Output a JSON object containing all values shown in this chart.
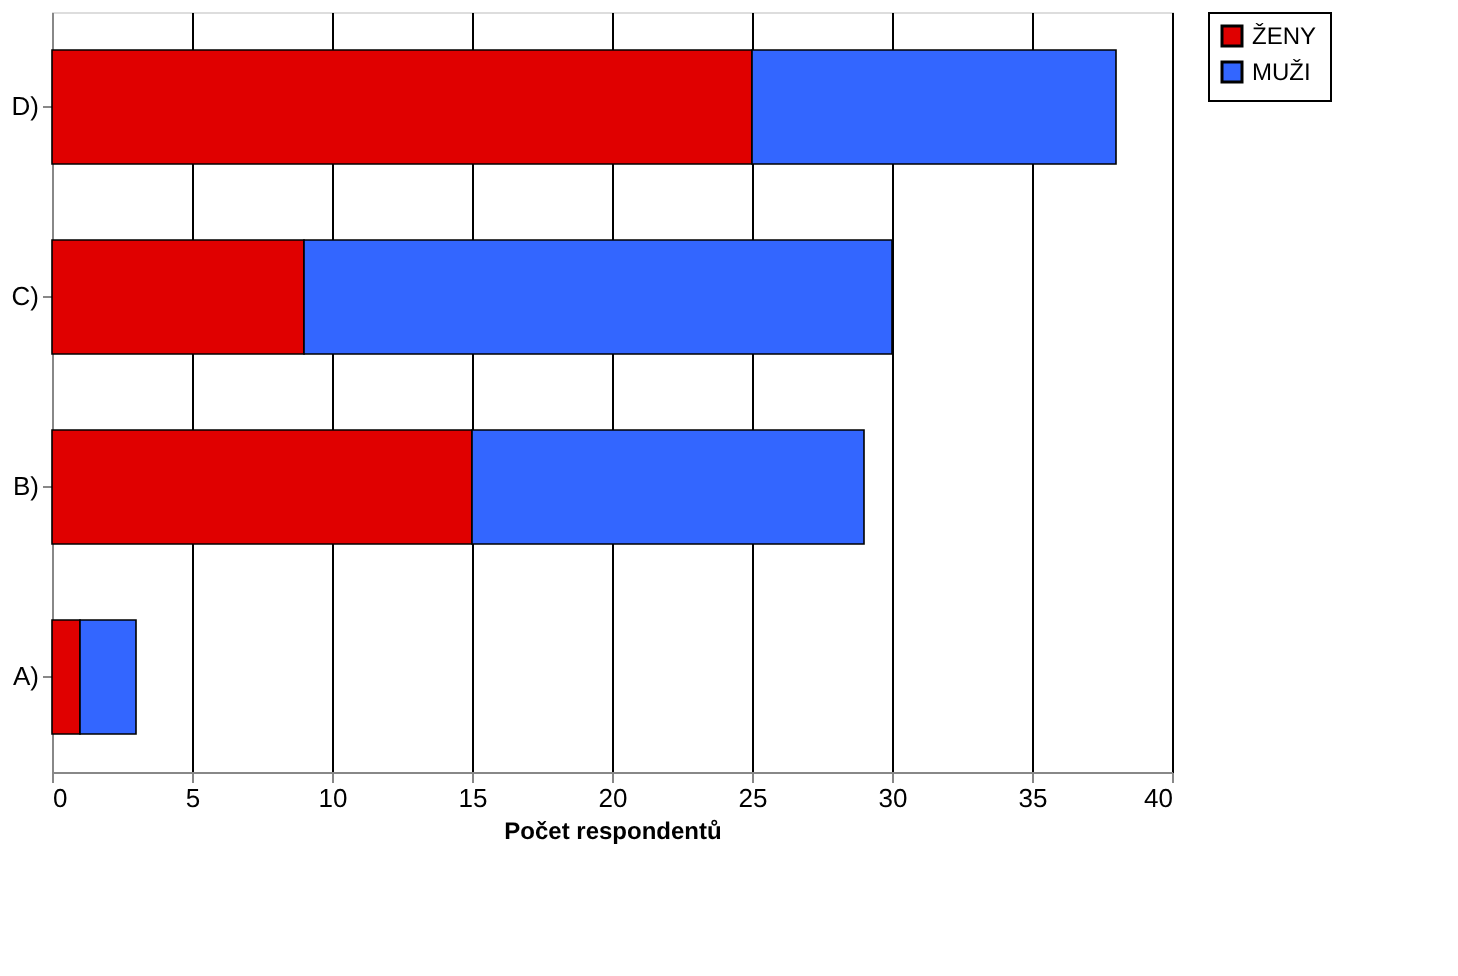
{
  "chart_data": {
    "type": "bar",
    "orientation": "horizontal",
    "stacked": true,
    "xlabel": "Počet respondentů",
    "categories": [
      "D)",
      "C)",
      "B)",
      "A)"
    ],
    "series": [
      {
        "name": "ŽENY",
        "color": "#e00000",
        "values": [
          25,
          9,
          15,
          1
        ]
      },
      {
        "name": "MUŽI",
        "color": "#3366ff",
        "values": [
          13,
          21,
          14,
          2
        ]
      }
    ],
    "xlim": [
      0,
      40
    ],
    "xticks": [
      0,
      5,
      10,
      15,
      20,
      25,
      30,
      35,
      40
    ],
    "grid": "x",
    "legend": "right"
  }
}
